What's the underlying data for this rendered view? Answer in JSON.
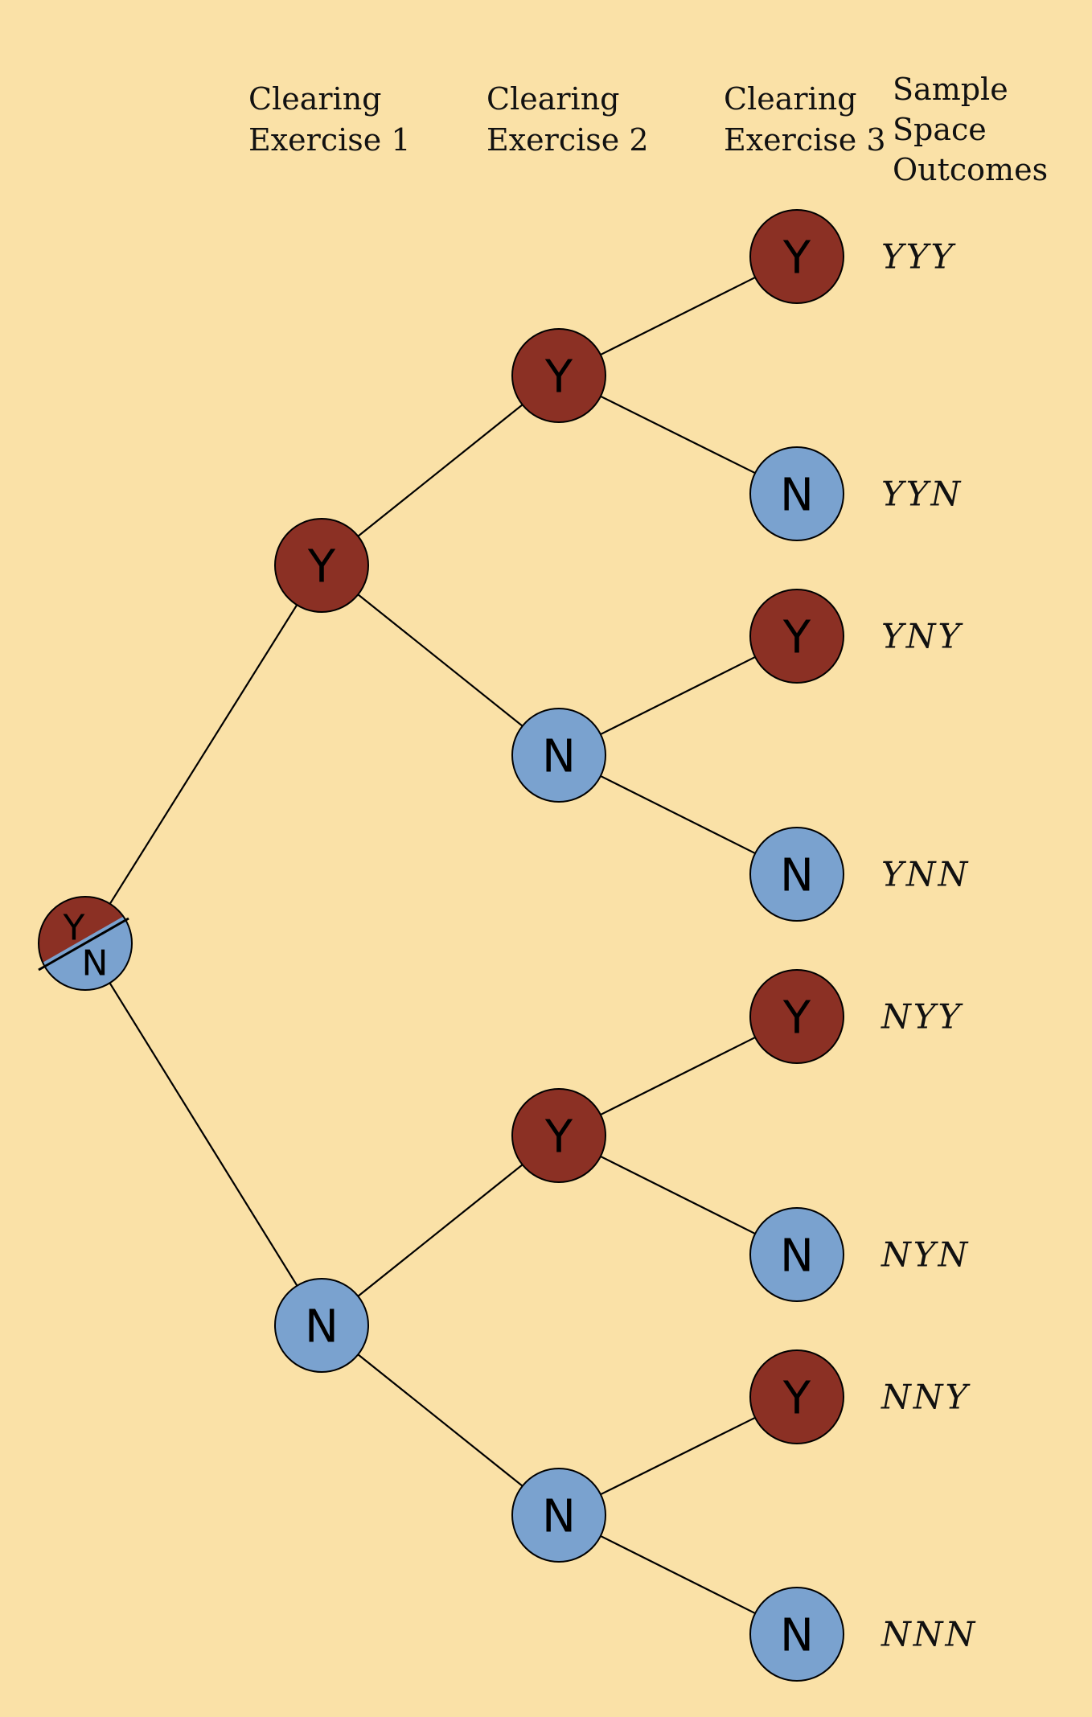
{
  "colors": {
    "background": "#fae1a7",
    "yes": "#8b3024",
    "no": "#7aa2cf"
  },
  "headers": {
    "exercise1": [
      "Clearing",
      "Exercise 1"
    ],
    "exercise2": [
      "Clearing",
      "Exercise 2"
    ],
    "exercise3": [
      "Clearing",
      "Exercise 3"
    ],
    "outcomes": [
      "Sample",
      "Space",
      "Outcomes"
    ]
  },
  "root": {
    "top_label": "Y",
    "bottom_label": "N"
  },
  "level1": [
    {
      "label": "Y",
      "value": "yes"
    },
    {
      "label": "N",
      "value": "no"
    }
  ],
  "level2": [
    {
      "label": "Y",
      "value": "yes",
      "parent": 0
    },
    {
      "label": "N",
      "value": "no",
      "parent": 0
    },
    {
      "label": "Y",
      "value": "yes",
      "parent": 1
    },
    {
      "label": "N",
      "value": "no",
      "parent": 1
    }
  ],
  "level3": [
    {
      "label": "Y",
      "value": "yes",
      "parent": 0,
      "outcome": "YYY"
    },
    {
      "label": "N",
      "value": "no",
      "parent": 0,
      "outcome": "YYN"
    },
    {
      "label": "Y",
      "value": "yes",
      "parent": 1,
      "outcome": "YNY"
    },
    {
      "label": "N",
      "value": "no",
      "parent": 1,
      "outcome": "YNN"
    },
    {
      "label": "Y",
      "value": "yes",
      "parent": 2,
      "outcome": "NYY"
    },
    {
      "label": "N",
      "value": "no",
      "parent": 2,
      "outcome": "NYN"
    },
    {
      "label": "Y",
      "value": "yes",
      "parent": 3,
      "outcome": "NNY"
    },
    {
      "label": "N",
      "value": "no",
      "parent": 3,
      "outcome": "NNN"
    }
  ]
}
